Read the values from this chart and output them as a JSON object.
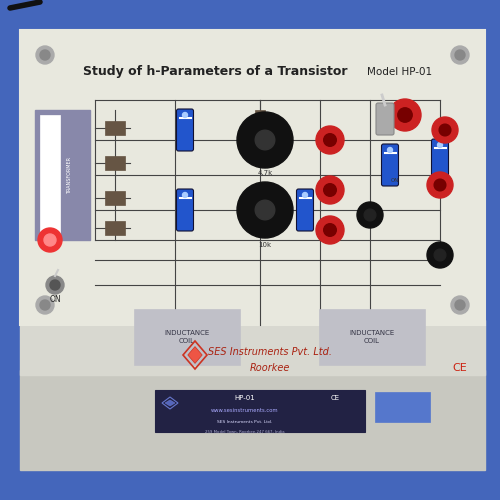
{
  "bg_color": "#4466bb",
  "panel_top_color": "#e8e8de",
  "panel_side_color": "#c8c8c0",
  "panel_front_color": "#d8d8d0",
  "title": "Study of h-Parameters of a Transistor",
  "model": "Model HP-01",
  "company": "SES Instruments Pvt. Ltd.",
  "city": "Roorkee",
  "ce_mark": "CE",
  "on_label": "ON",
  "coil_label": "INDUCTANCE\nCOIL",
  "transformer_label": "TRANSFORMER",
  "cord_color": "#111111",
  "transformer_color": "#8888aa",
  "capacitor_color": "#2255cc",
  "knob_color": "#111111",
  "led_color": "#ee2222",
  "red_jack_color": "#cc2222",
  "black_jack_color": "#111111",
  "resistor_color": "#665544",
  "logo_color": "#cc3322",
  "text_color": "#222222",
  "plate_color": "#222244",
  "blue_sticker": "#5577cc",
  "screw_color": "#aaaaaa",
  "line_color": "#444444",
  "coil_fill": "#c0c0c8"
}
